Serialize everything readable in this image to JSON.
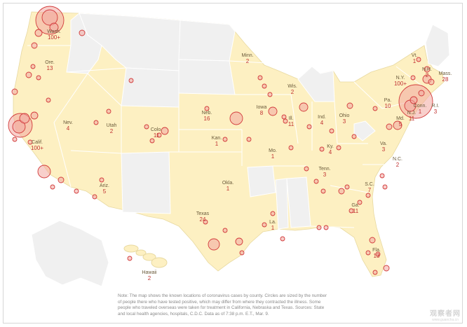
{
  "note": "Note: The map shows the known locations of coronavirus cases by county. Circles are sized by the number of people there who have tested positive, which may differ from where they contracted the illness. Some people who traveled overseas were taken for treatment in California, Nebraska and Texas. Sources: State and local health agencies, hospitals, C.D.C. Data as of 7:38 p.m. E.T., Mar. 9.",
  "watermark": {
    "main": "观察者网",
    "sub": "www.guancha.cn"
  },
  "colors": {
    "state_with_cases": "#fdf0c2",
    "state_no_cases": "#f0f0f0",
    "border": "#ffffff",
    "circle_fill": "#f2a8a0",
    "circle_stroke": "#d23a3a",
    "count_text": "#c03030"
  },
  "states": [
    {
      "name": "Wash.",
      "count": "100+"
    },
    {
      "name": "Ore.",
      "count": "13"
    },
    {
      "name": "Calif.",
      "count": "100+"
    },
    {
      "name": "Nev.",
      "count": "4"
    },
    {
      "name": "Utah",
      "count": "2"
    },
    {
      "name": "Colo.",
      "count": "11"
    },
    {
      "name": "Ariz.",
      "count": "5"
    },
    {
      "name": "Neb.",
      "count": "16"
    },
    {
      "name": "Kan.",
      "count": "1"
    },
    {
      "name": "Okla.",
      "count": "1"
    },
    {
      "name": "Texas",
      "count": "24"
    },
    {
      "name": "Minn.",
      "count": "2"
    },
    {
      "name": "Iowa",
      "count": "8"
    },
    {
      "name": "Mo.",
      "count": "1"
    },
    {
      "name": "La.",
      "count": "1"
    },
    {
      "name": "Wis.",
      "count": "2"
    },
    {
      "name": "Ill.",
      "count": "11"
    },
    {
      "name": "Ind.",
      "count": "4"
    },
    {
      "name": "Ky.",
      "count": "4"
    },
    {
      "name": "Tenn.",
      "count": "3"
    },
    {
      "name": "Ohio",
      "count": "3"
    },
    {
      "name": "Pa.",
      "count": "10"
    },
    {
      "name": "N.Y.",
      "count": "100+"
    },
    {
      "name": "Vt.",
      "count": "1"
    },
    {
      "name": "N.H.",
      "count": "2"
    },
    {
      "name": "Mass.",
      "count": "28"
    },
    {
      "name": "R.I.",
      "count": "3"
    },
    {
      "name": "Conn.",
      "count": "1"
    },
    {
      "name": "N.J.",
      "count": "11"
    },
    {
      "name": "Md.",
      "count": "5"
    },
    {
      "name": "Va.",
      "count": "3"
    },
    {
      "name": "N.C.",
      "count": "2"
    },
    {
      "name": "S.C.",
      "count": "7"
    },
    {
      "name": "Ga.",
      "count": "11"
    },
    {
      "name": "Fla.",
      "count": "13"
    },
    {
      "name": "Hawaii",
      "count": "2"
    }
  ]
}
